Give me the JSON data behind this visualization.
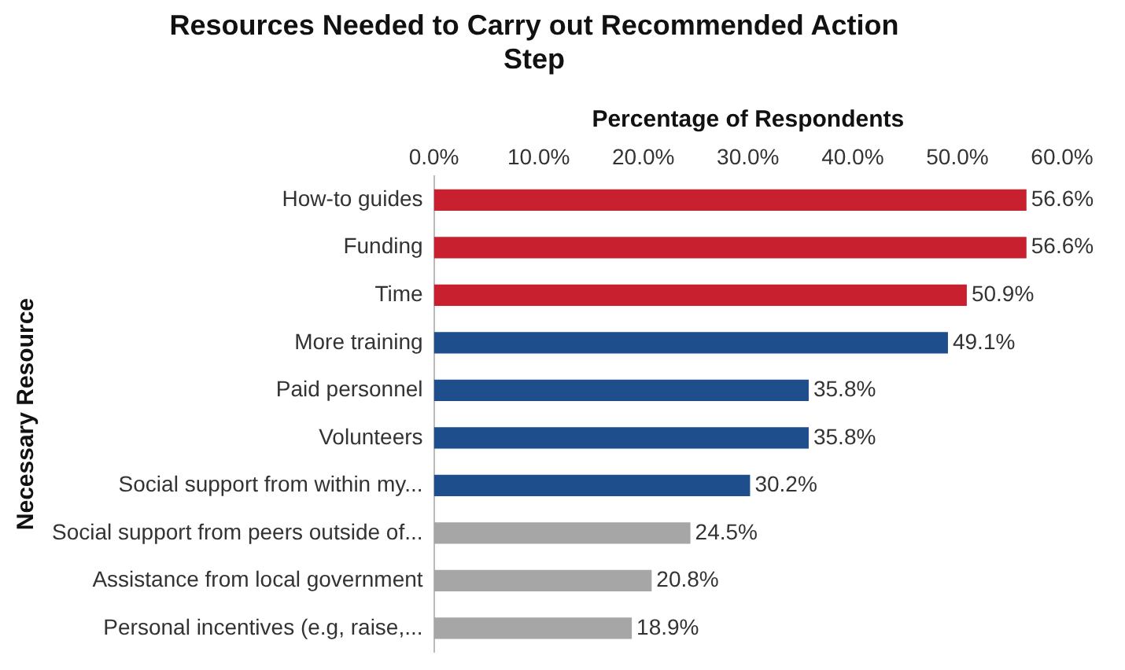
{
  "chart_data": {
    "type": "bar",
    "orientation": "horizontal",
    "title": "Resources Needed to Carry out Recommended Action Step",
    "xlabel": "Percentage of Respondents",
    "ylabel": "Necessary Resource",
    "categories": [
      "How-to guides",
      "Funding",
      "Time",
      "More training",
      "Paid personnel",
      "Volunteers",
      "Social support from within my...",
      "Social support from peers outside of...",
      "Assistance from local government",
      "Personal incentives (e.g, raise,..."
    ],
    "values": [
      56.6,
      56.6,
      50.9,
      49.1,
      35.8,
      35.8,
      30.2,
      24.5,
      20.8,
      18.9
    ],
    "colors": [
      "#c8202f",
      "#c8202f",
      "#c8202f",
      "#1f4e8c",
      "#1f4e8c",
      "#1f4e8c",
      "#1f4e8c",
      "#a6a6a6",
      "#a6a6a6",
      "#a6a6a6"
    ],
    "value_labels": [
      "56.6%",
      "56.6%",
      "50.9%",
      "49.1%",
      "35.8%",
      "35.8%",
      "30.2%",
      "24.5%",
      "20.8%",
      "18.9%"
    ],
    "xlim": [
      0,
      60
    ],
    "xticks": [
      {
        "value": 0,
        "label": "0.0%"
      },
      {
        "value": 10,
        "label": "10.0%"
      },
      {
        "value": 20,
        "label": "20.0%"
      },
      {
        "value": 30,
        "label": "30.0%"
      },
      {
        "value": 40,
        "label": "40.0%"
      },
      {
        "value": 50,
        "label": "50.0%"
      },
      {
        "value": 60,
        "label": "60.0%"
      }
    ],
    "grid": false,
    "legend": false
  }
}
